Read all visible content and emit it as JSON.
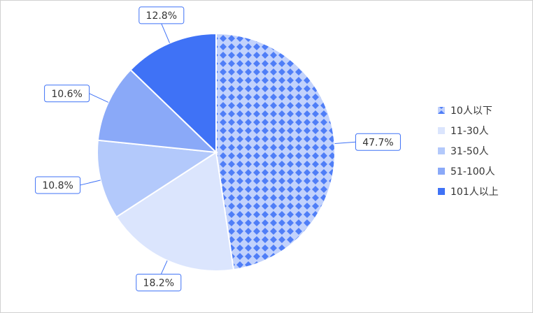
{
  "chart_data": {
    "type": "pie",
    "categories": [
      "10人以下",
      "11-30人",
      "31-50人",
      "51-100人",
      "101人以上"
    ],
    "values": [
      47.7,
      18.2,
      10.8,
      10.6,
      12.8
    ],
    "value_labels": [
      "47.7%",
      "18.2%",
      "10.8%",
      "10.6%",
      "12.8%"
    ],
    "colors": [
      "#4f7ef7",
      "#dbe5fd",
      "#b3c9fb",
      "#8aa9f8",
      "#3f72f6"
    ],
    "patterned": [
      true,
      false,
      false,
      false,
      false
    ],
    "legend": "right"
  }
}
